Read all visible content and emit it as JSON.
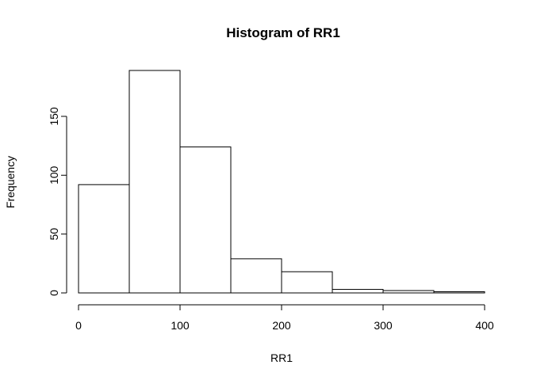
{
  "chart_data": {
    "type": "bar",
    "title": "Histogram of RR1",
    "xlabel": "RR1",
    "ylabel": "Frequency",
    "bins": [
      [
        0,
        50
      ],
      [
        50,
        100
      ],
      [
        100,
        150
      ],
      [
        150,
        200
      ],
      [
        200,
        250
      ],
      [
        250,
        300
      ],
      [
        300,
        350
      ],
      [
        350,
        400
      ]
    ],
    "values": [
      92,
      189,
      124,
      29,
      18,
      3,
      2,
      1
    ],
    "xlim": [
      0,
      400
    ],
    "ylim": [
      0,
      189
    ],
    "x_ticks": [
      0,
      100,
      200,
      300,
      400
    ],
    "y_ticks": [
      0,
      50,
      100,
      150
    ],
    "grid": false
  }
}
